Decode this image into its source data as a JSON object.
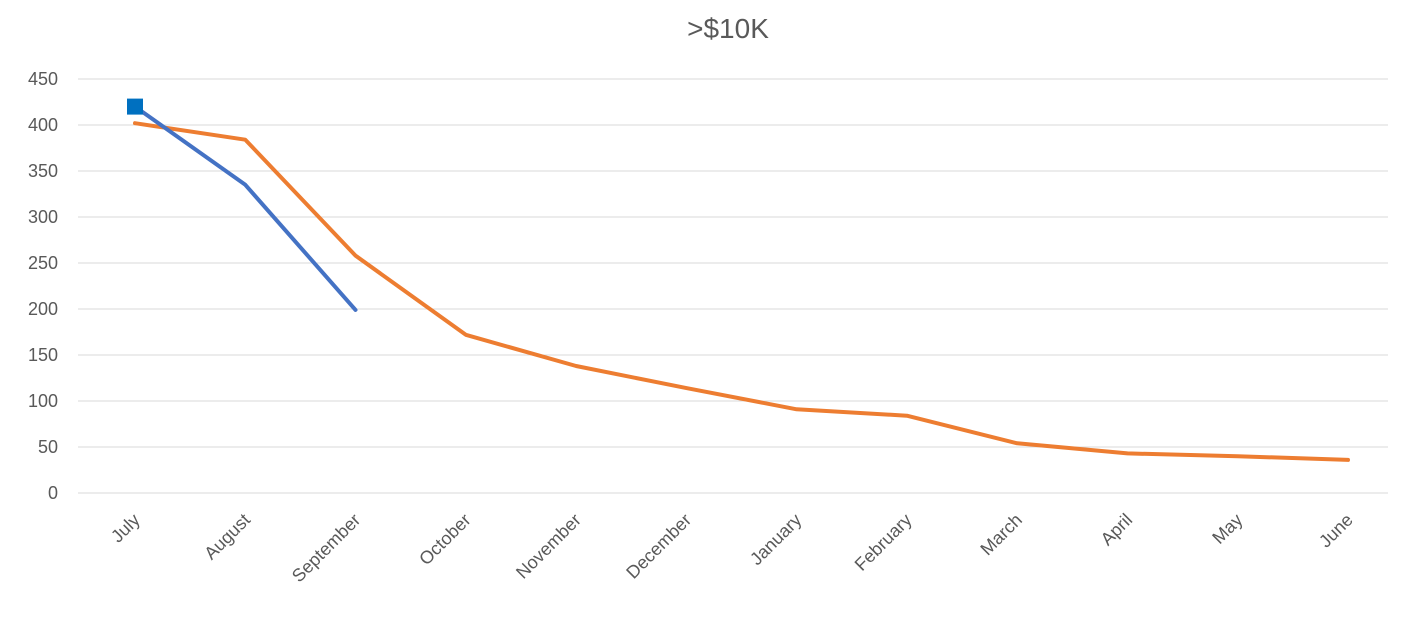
{
  "chart_data": {
    "type": "line",
    "title": ">$10K",
    "xlabel": "",
    "ylabel": "",
    "categories": [
      "July",
      "August",
      "September",
      "October",
      "November",
      "December",
      "January",
      "February",
      "March",
      "April",
      "May",
      "June"
    ],
    "ylim": [
      0,
      450
    ],
    "yticks": [
      0,
      50,
      100,
      150,
      200,
      250,
      300,
      350,
      400,
      450
    ],
    "grid": true,
    "legend": "none",
    "series": [
      {
        "color": "#4472C4",
        "values": [
          420,
          335,
          199,
          null,
          null,
          null,
          null,
          null,
          null,
          null,
          null,
          null
        ],
        "marker": "square",
        "marker_color": "#0070C0",
        "marker_points": [
          0
        ]
      },
      {
        "color": "#ED7D31",
        "values": [
          402,
          384,
          258,
          172,
          138,
          114,
          91,
          84,
          54,
          43,
          40,
          36
        ]
      }
    ]
  }
}
